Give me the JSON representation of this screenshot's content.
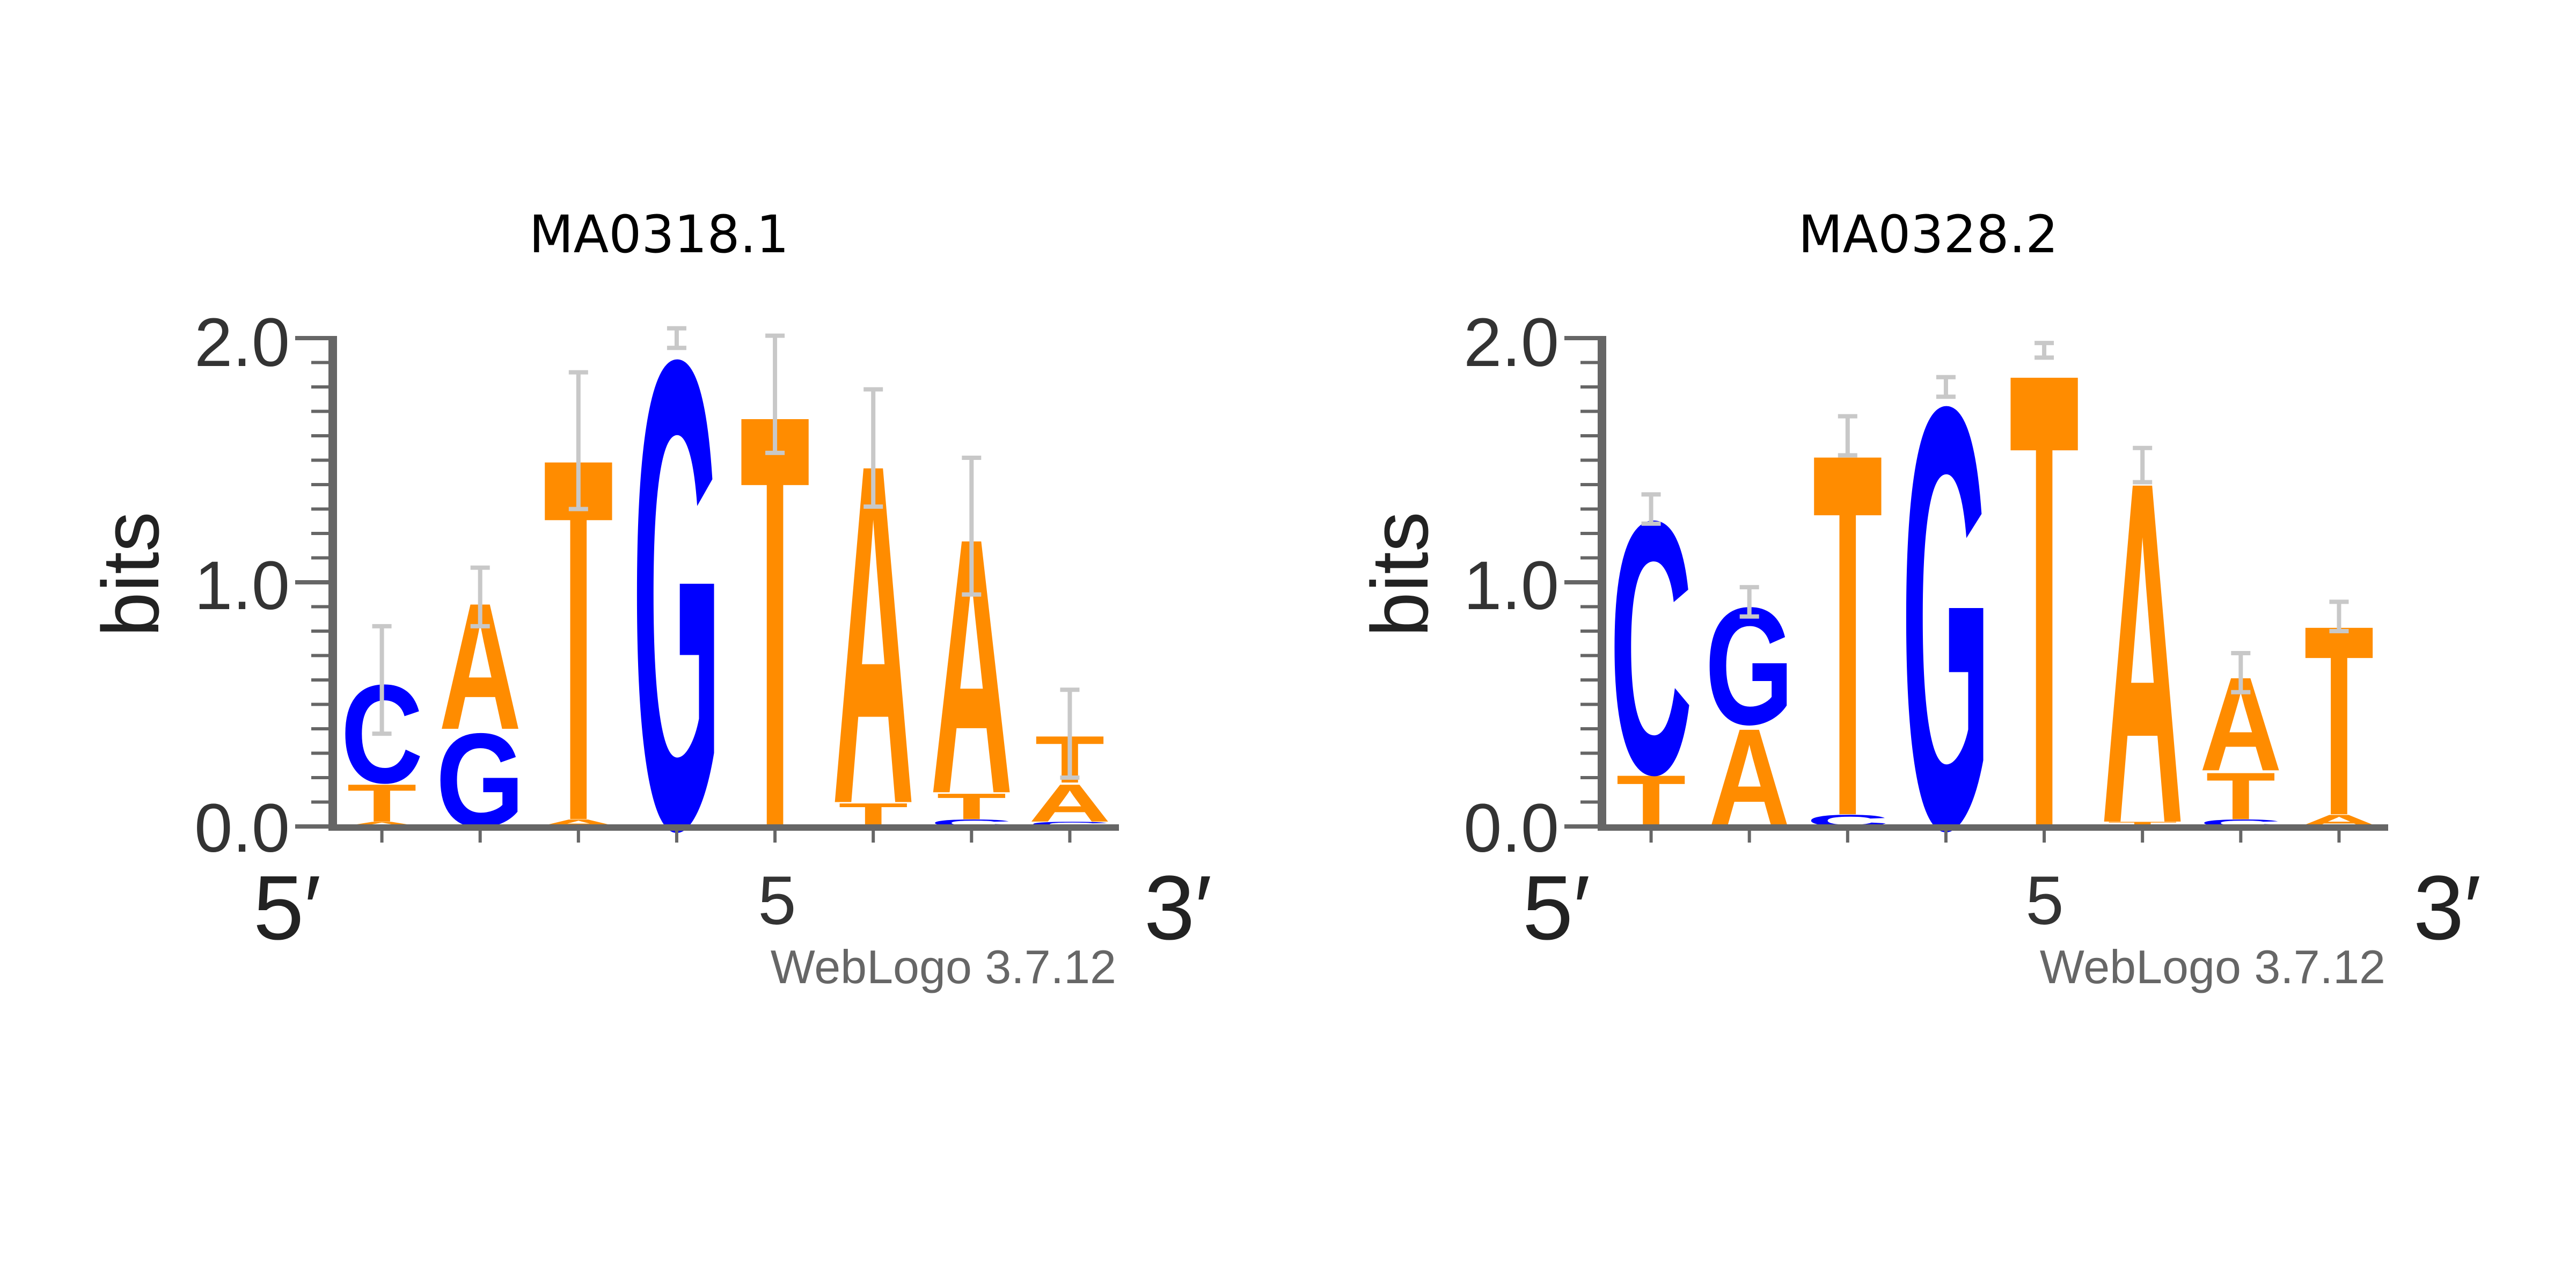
{
  "figure": {
    "panels": [
      {
        "title": "MA0318.1",
        "ylabel": "bits",
        "yticks": [
          "2.0",
          "1.0",
          "0.0"
        ],
        "x_start_label": "5′",
        "x_end_label": "3′",
        "x_mid_label": "5",
        "credit": "WebLogo 3.7.12"
      },
      {
        "title": "MA0328.2",
        "ylabel": "bits",
        "yticks": [
          "2.0",
          "1.0",
          "0.0"
        ],
        "x_start_label": "5′",
        "x_end_label": "3′",
        "x_mid_label": "5",
        "credit": "WebLogo 3.7.12"
      }
    ]
  },
  "colors": {
    "A": "#ff8c00",
    "T": "#ff8c00",
    "C": "#0000ff",
    "G": "#0000ff",
    "axis": "#666666",
    "errorbar": "#c8c8c8"
  },
  "chart_data": [
    {
      "type": "sequence-logo",
      "title": "MA0318.1",
      "ylabel": "bits",
      "ylim": [
        0,
        2.0
      ],
      "positions": [
        {
          "pos": 1,
          "stack": [
            {
              "base": "A",
              "height": 0.02
            },
            {
              "base": "T",
              "height": 0.16
            },
            {
              "base": "C",
              "height": 0.42
            }
          ],
          "error": 0.22
        },
        {
          "pos": 2,
          "stack": [
            {
              "base": "G",
              "height": 0.4
            },
            {
              "base": "A",
              "height": 0.54
            }
          ],
          "error": 0.12
        },
        {
          "pos": 3,
          "stack": [
            {
              "base": "A",
              "height": 0.03
            },
            {
              "base": "T",
              "height": 1.55
            }
          ],
          "error": 0.28
        },
        {
          "pos": 4,
          "stack": [
            {
              "base": "G",
              "height": 2.0
            }
          ],
          "error": 0.04
        },
        {
          "pos": 5,
          "stack": [
            {
              "base": "T",
              "height": 1.77
            }
          ],
          "error": 0.24
        },
        {
          "pos": 6,
          "stack": [
            {
              "base": "T",
              "height": 0.1
            },
            {
              "base": "A",
              "height": 1.45
            }
          ],
          "error": 0.24
        },
        {
          "pos": 7,
          "stack": [
            {
              "base": "C",
              "height": 0.03
            },
            {
              "base": "T",
              "height": 0.11
            },
            {
              "base": "A",
              "height": 1.09
            }
          ],
          "error": 0.28
        },
        {
          "pos": 8,
          "stack": [
            {
              "base": "C",
              "height": 0.02
            },
            {
              "base": "A",
              "height": 0.16
            },
            {
              "base": "T",
              "height": 0.2
            }
          ],
          "error": 0.18
        }
      ]
    },
    {
      "type": "sequence-logo",
      "title": "MA0328.2",
      "ylabel": "bits",
      "ylim": [
        0,
        2.0
      ],
      "positions": [
        {
          "pos": 1,
          "stack": [
            {
              "base": "T",
              "height": 0.22
            },
            {
              "base": "C",
              "height": 1.08
            }
          ],
          "error": 0.06
        },
        {
          "pos": 2,
          "stack": [
            {
              "base": "A",
              "height": 0.42
            },
            {
              "base": "G",
              "height": 0.5
            }
          ],
          "error": 0.06
        },
        {
          "pos": 3,
          "stack": [
            {
              "base": "C",
              "height": 0.05
            },
            {
              "base": "T",
              "height": 1.55
            }
          ],
          "error": 0.08
        },
        {
          "pos": 4,
          "stack": [
            {
              "base": "G",
              "height": 1.8
            }
          ],
          "error": 0.04
        },
        {
          "pos": 5,
          "stack": [
            {
              "base": "T",
              "height": 1.95
            }
          ],
          "error": 0.03
        },
        {
          "pos": 6,
          "stack": [
            {
              "base": "T",
              "height": 0.02
            },
            {
              "base": "A",
              "height": 1.46
            }
          ],
          "error": 0.07
        },
        {
          "pos": 7,
          "stack": [
            {
              "base": "C",
              "height": 0.03
            },
            {
              "base": "T",
              "height": 0.2
            },
            {
              "base": "A",
              "height": 0.4
            }
          ],
          "error": 0.08
        },
        {
          "pos": 8,
          "stack": [
            {
              "base": "A",
              "height": 0.05
            },
            {
              "base": "T",
              "height": 0.81
            }
          ],
          "error": 0.06
        }
      ]
    }
  ]
}
